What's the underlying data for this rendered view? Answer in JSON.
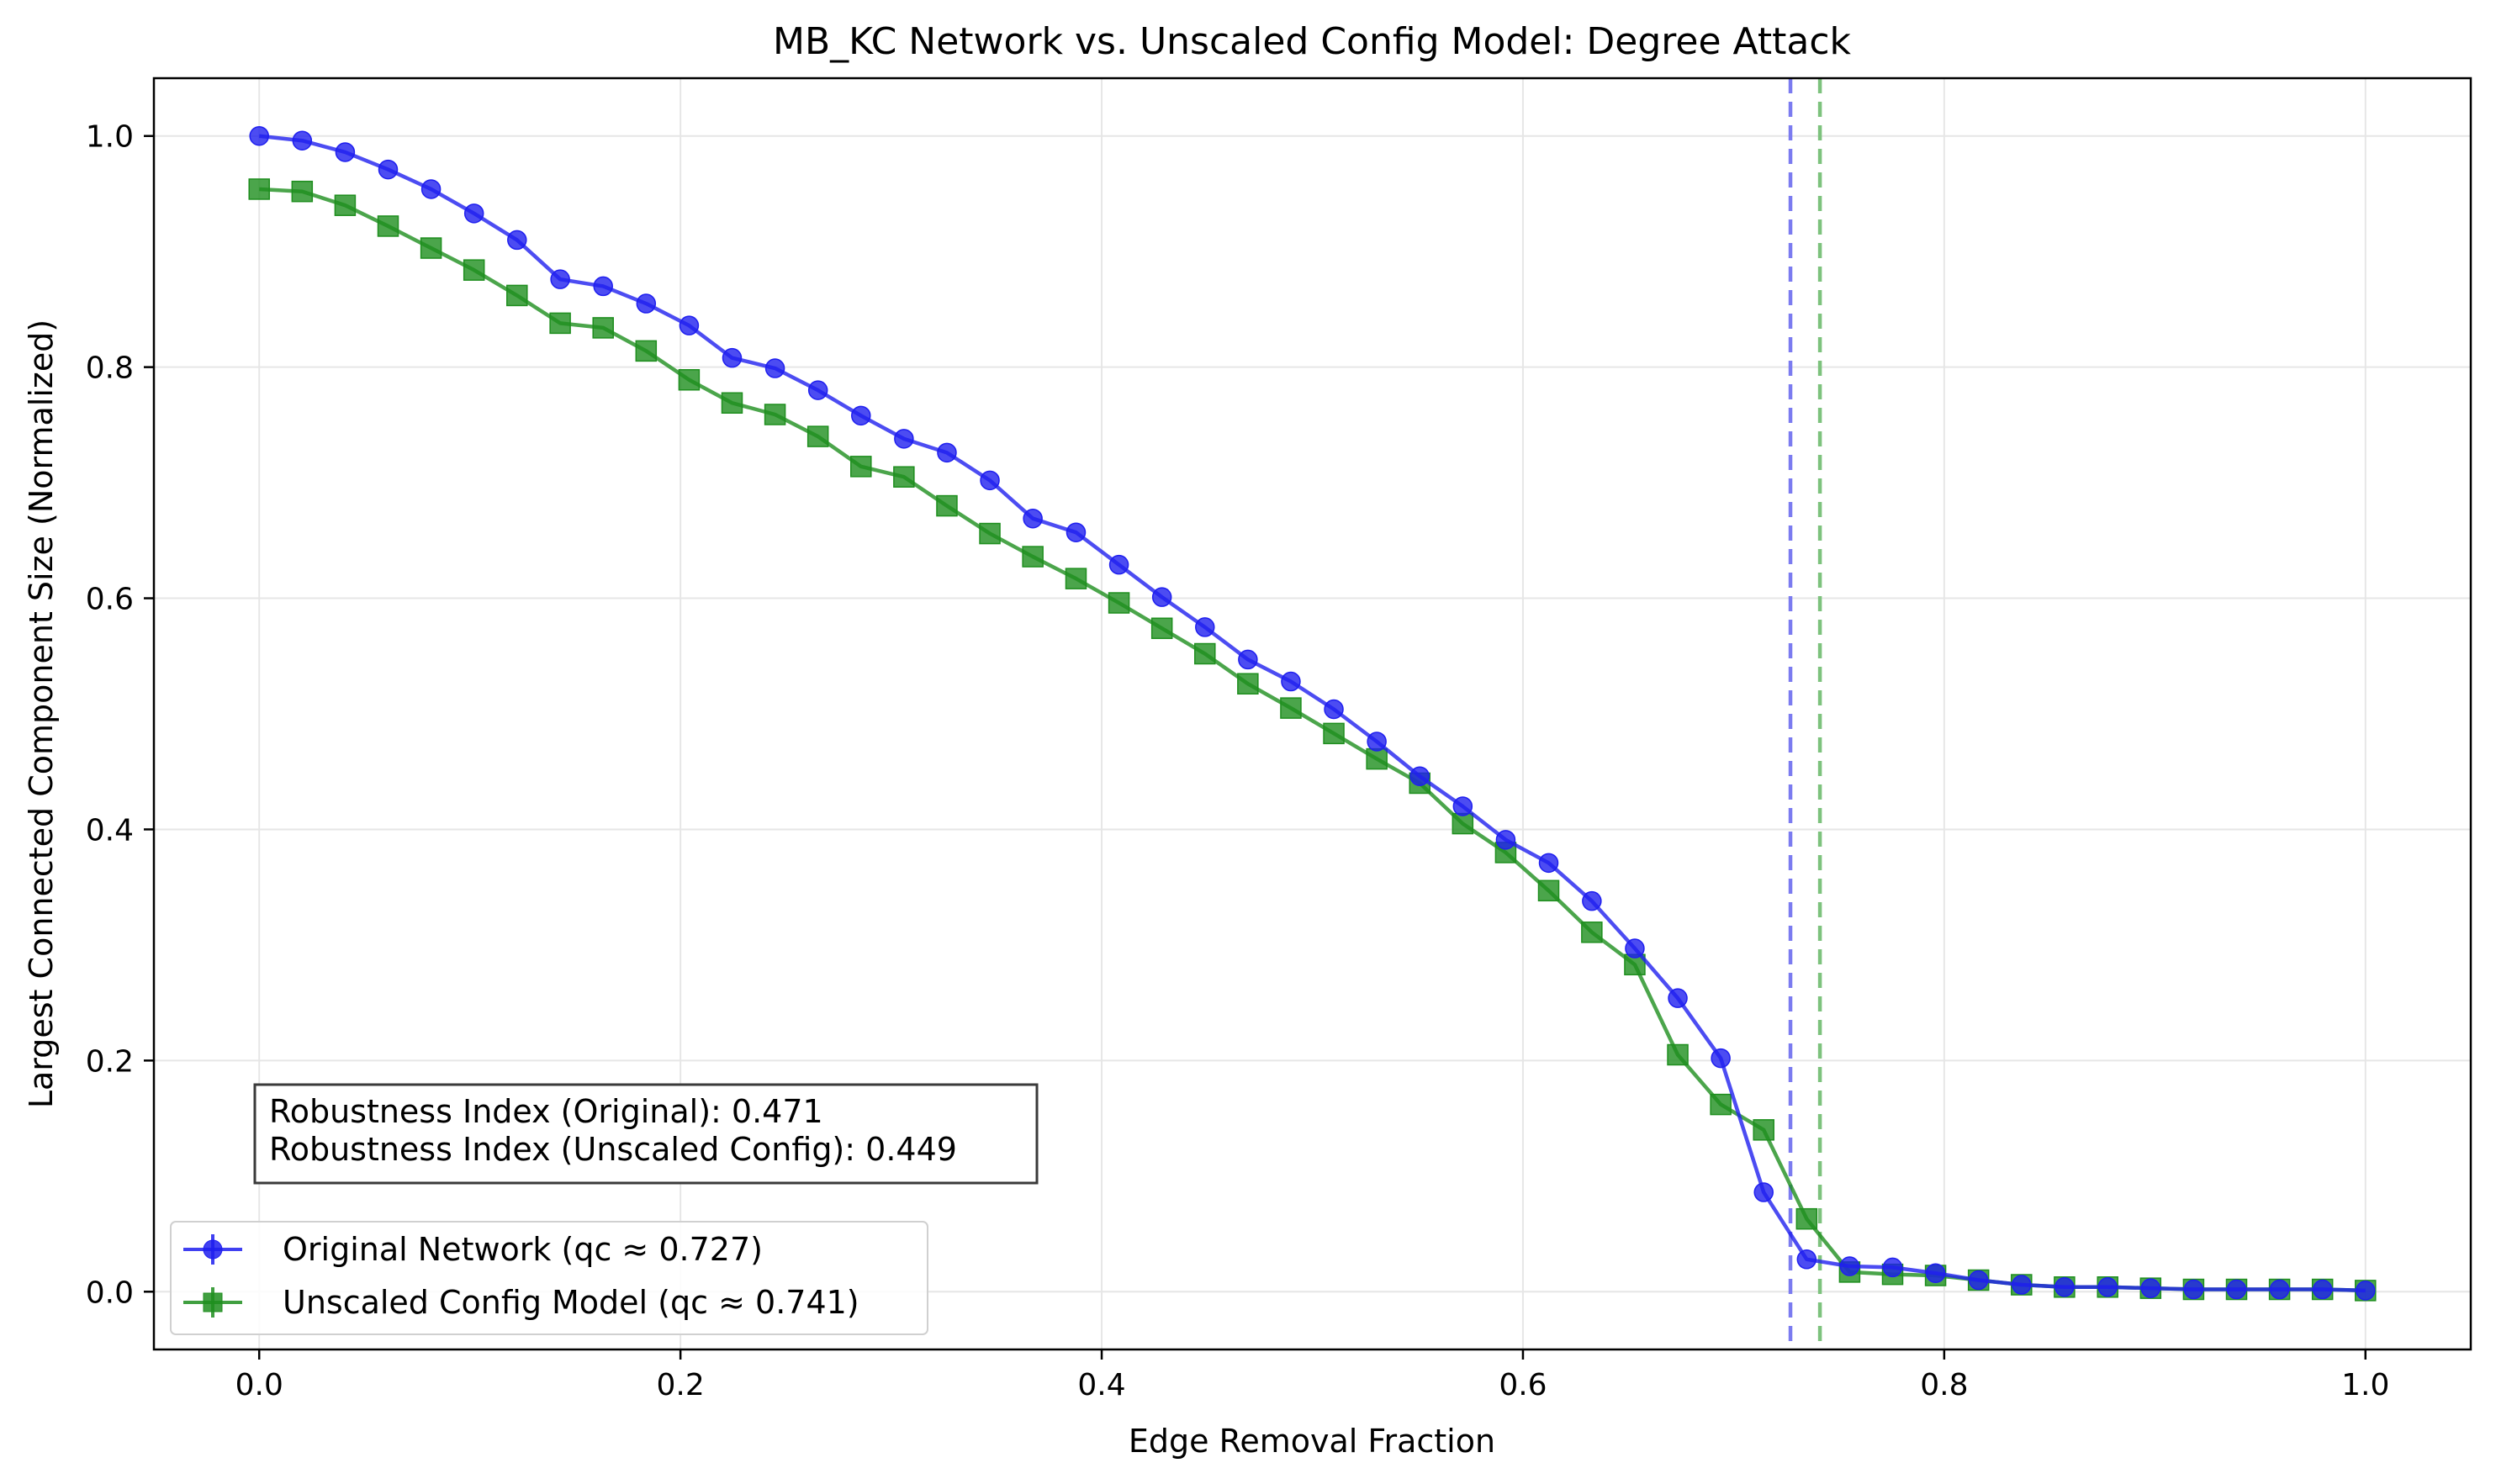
{
  "chart_data": {
    "type": "line",
    "title": "MB_KC Network vs. Unscaled Config Model: Degree Attack",
    "xlabel": "Edge Removal Fraction",
    "ylabel": "Largest Connected Component Size (Normalized)",
    "xlim": [
      -0.05,
      1.05
    ],
    "ylim": [
      -0.05,
      1.05
    ],
    "xticks": [
      0.0,
      0.2,
      0.4,
      0.6,
      0.8,
      1.0
    ],
    "xtick_labels": [
      "0.0",
      "0.2",
      "0.4",
      "0.6",
      "0.8",
      "1.0"
    ],
    "yticks": [
      0.0,
      0.2,
      0.4,
      0.6,
      0.8,
      1.0
    ],
    "ytick_labels": [
      "0.0",
      "0.2",
      "0.4",
      "0.6",
      "0.8",
      "1.0"
    ],
    "grid": true,
    "legend_position": "lower-left",
    "x": [
      0.0,
      0.0204,
      0.0408,
      0.0612,
      0.0816,
      0.102,
      0.1224,
      0.1429,
      0.1633,
      0.1837,
      0.2041,
      0.2245,
      0.2449,
      0.2653,
      0.2857,
      0.3061,
      0.3265,
      0.3469,
      0.3673,
      0.3878,
      0.4082,
      0.4286,
      0.449,
      0.4694,
      0.4898,
      0.5102,
      0.5306,
      0.551,
      0.5714,
      0.5918,
      0.6122,
      0.6327,
      0.6531,
      0.6735,
      0.6939,
      0.7143,
      0.7347,
      0.7551,
      0.7755,
      0.7959,
      0.8163,
      0.8367,
      0.8571,
      0.8776,
      0.898,
      0.9184,
      0.9388,
      0.9592,
      0.9796,
      1.0
    ],
    "series": [
      {
        "name": "Original Network (qc ≈ 0.727)",
        "color": "#1f1fef",
        "marker": "circle",
        "values": [
          1.0,
          0.996,
          0.986,
          0.971,
          0.954,
          0.933,
          0.91,
          0.876,
          0.87,
          0.855,
          0.836,
          0.808,
          0.799,
          0.78,
          0.758,
          0.738,
          0.726,
          0.702,
          0.669,
          0.657,
          0.629,
          0.601,
          0.575,
          0.547,
          0.528,
          0.504,
          0.476,
          0.446,
          0.42,
          0.391,
          0.371,
          0.338,
          0.297,
          0.254,
          0.202,
          0.086,
          0.028,
          0.022,
          0.021,
          0.016,
          0.01,
          0.006,
          0.004,
          0.004,
          0.003,
          0.002,
          0.002,
          0.002,
          0.002,
          0.001
        ]
      },
      {
        "name": "Unscaled Config Model (qc ≈ 0.741)",
        "color": "#1e8e1e",
        "marker": "square",
        "values": [
          0.954,
          0.952,
          0.94,
          0.922,
          0.903,
          0.884,
          0.862,
          0.838,
          0.834,
          0.814,
          0.789,
          0.769,
          0.759,
          0.74,
          0.714,
          0.705,
          0.68,
          0.656,
          0.636,
          0.617,
          0.596,
          0.574,
          0.552,
          0.526,
          0.505,
          0.483,
          0.461,
          0.44,
          0.405,
          0.38,
          0.347,
          0.311,
          0.283,
          0.205,
          0.162,
          0.14,
          0.063,
          0.017,
          0.015,
          0.014,
          0.01,
          0.006,
          0.004,
          0.004,
          0.003,
          0.002,
          0.002,
          0.002,
          0.002,
          0.001
        ]
      }
    ],
    "vlines": [
      {
        "x": 0.727,
        "color": "#7b7bf0",
        "style": "dashed"
      },
      {
        "x": 0.741,
        "color": "#7dc27d",
        "style": "dashed"
      }
    ],
    "annotation": {
      "line1": "Robustness Index (Original): 0.471",
      "line2": "Robustness Index (Unscaled Config): 0.449"
    }
  }
}
